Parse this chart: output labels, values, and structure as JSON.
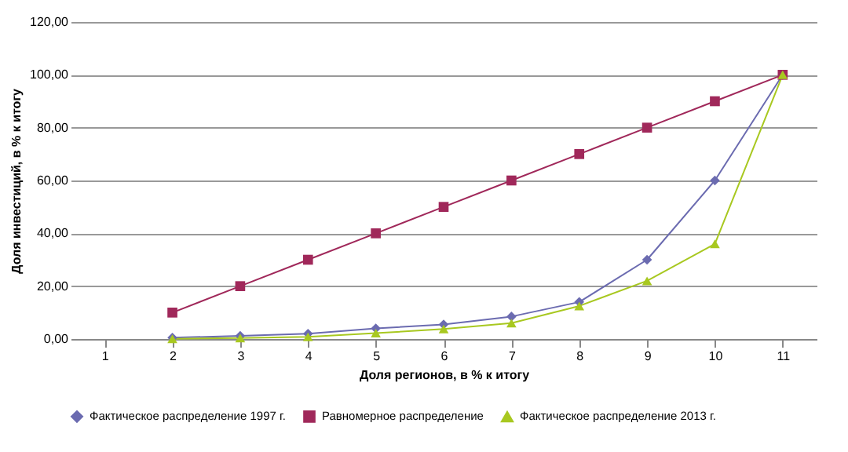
{
  "chart_data": {
    "type": "line",
    "xlabel": "Доля регионов, в % к итогу",
    "ylabel": "Доля инвестиций, в % к итогу",
    "categories": [
      "1",
      "2",
      "3",
      "4",
      "5",
      "6",
      "7",
      "8",
      "9",
      "10",
      "11"
    ],
    "series": [
      {
        "name": "Фактическое распределение 1997 г.",
        "color": "#6b6bb0",
        "marker": "diamond",
        "values": [
          null,
          0.5,
          1.2,
          2,
          4,
          5.5,
          8.5,
          14,
          30,
          60,
          100
        ]
      },
      {
        "name": "Равномерное распределение",
        "color": "#a0285a",
        "marker": "square",
        "values": [
          null,
          10,
          20,
          30,
          40,
          50,
          60,
          70,
          80,
          90,
          100
        ]
      },
      {
        "name": "Фактическое распределение 2013 г.",
        "color": "#a8c820",
        "marker": "triangle",
        "values": [
          null,
          0.1,
          0.4,
          0.8,
          2.2,
          3.8,
          6,
          12.5,
          22,
          36,
          100
        ]
      }
    ],
    "ylim": [
      0,
      120
    ],
    "yticks": [
      {
        "value": 0,
        "label": "0,00"
      },
      {
        "value": 20,
        "label": "20,00"
      },
      {
        "value": 40,
        "label": "40,00"
      },
      {
        "value": 60,
        "label": "60,00"
      },
      {
        "value": 80,
        "label": "80,00"
      },
      {
        "value": 100,
        "label": "100,00"
      },
      {
        "value": 120,
        "label": "120,00"
      }
    ],
    "grid": "y",
    "legend": "bottom",
    "line_style": "solid"
  }
}
